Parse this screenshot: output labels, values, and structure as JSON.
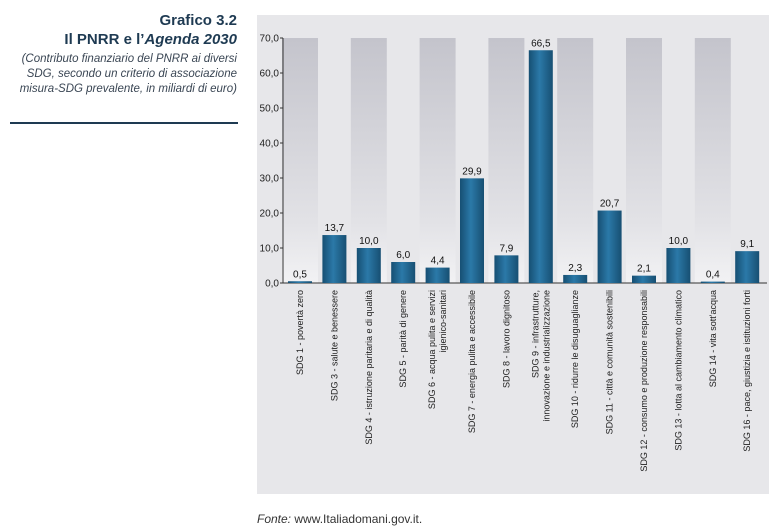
{
  "header": {
    "figure_number": "Grafico 3.2",
    "title_prefix": "Il PNRR e l’",
    "title_italic": "Agenda 2030",
    "subtitle": "(Contributo finanziario del PNRR ai diversi SDG, secondo un criterio di associazione misura-SDG prevalente, in miliardi di euro)"
  },
  "source": {
    "label": "Fonte:",
    "text": "www.Italiadomani.gov.it."
  },
  "colors": {
    "bar": "#1b5c84",
    "bar_highlight": "#2d7bab",
    "background_column": "#c9c9d0",
    "title": "#1e3a52"
  },
  "chart_data": {
    "type": "bar",
    "title": "",
    "xlabel": "",
    "ylabel": "",
    "ylim": [
      0,
      70
    ],
    "yticks": [
      "0,0",
      "10,0",
      "20,0",
      "30,0",
      "40,0",
      "50,0",
      "60,0",
      "70,0"
    ],
    "grid": false,
    "categories": [
      "SDG 1 - povertà zero",
      "SDG 3 - salute e benessere",
      "SDG 4 - istruzione paritaria e di qualità",
      "SDG 5 - parità di genere",
      "SDG 6 - acqua pulita e servizi igienico-sanitari",
      "SDG 7 - energia pulita e accessibile",
      "SDG 8 - lavoro dignitoso",
      "SDG 9 - infrastrutture, innovazione e industrializzazione",
      "SDG 10 - ridurre le disuguaglianze",
      "SDG 11 - città e comunità sostenibili",
      "SDG 12 - consumo e produzione responsabili",
      "SDG 13 - lotta al cambiamento climatico",
      "SDG 14 - vita sott'acqua",
      "SDG 16 - pace, giustizia e istituzioni forti"
    ],
    "category_lines": [
      [
        "SDG 1 - povertà zero"
      ],
      [
        "SDG 3 - salute e benessere"
      ],
      [
        "SDG 4 - istruzione paritaria e di qualità"
      ],
      [
        "SDG 5 - parità di genere"
      ],
      [
        "SDG 6 - acqua pulita e servizi",
        "igienico-sanitari"
      ],
      [
        "SDG 7 - energia pulita e accessibile"
      ],
      [
        "SDG 8 - lavoro dignitoso"
      ],
      [
        "SDG 9 - infrastrutture,",
        "innovazione e industrializzazione"
      ],
      [
        "SDG 10 - ridurre le disuguaglianze"
      ],
      [
        "SDG 11 - città e comunità sostenibili"
      ],
      [
        "SDG 12 - consumo e produzione responsabili"
      ],
      [
        "SDG 13 - lotta al cambiamento climatico"
      ],
      [
        "SDG 14 - vita sott'acqua"
      ],
      [
        "SDG 16 - pace, giustizia e istituzioni forti"
      ]
    ],
    "values": [
      0.5,
      13.7,
      10.0,
      6.0,
      4.4,
      29.9,
      7.9,
      66.5,
      2.3,
      20.7,
      2.1,
      10.0,
      0.4,
      9.1
    ],
    "value_labels": [
      "0,5",
      "13,7",
      "10,0",
      "6,0",
      "4,4",
      "29,9",
      "7,9",
      "66,5",
      "2,3",
      "20,7",
      "2,1",
      "10,0",
      "0,4",
      "9,1"
    ],
    "background_columns": [
      true,
      false,
      true,
      false,
      true,
      false,
      true,
      false,
      true,
      false,
      true,
      false,
      true,
      false
    ]
  }
}
